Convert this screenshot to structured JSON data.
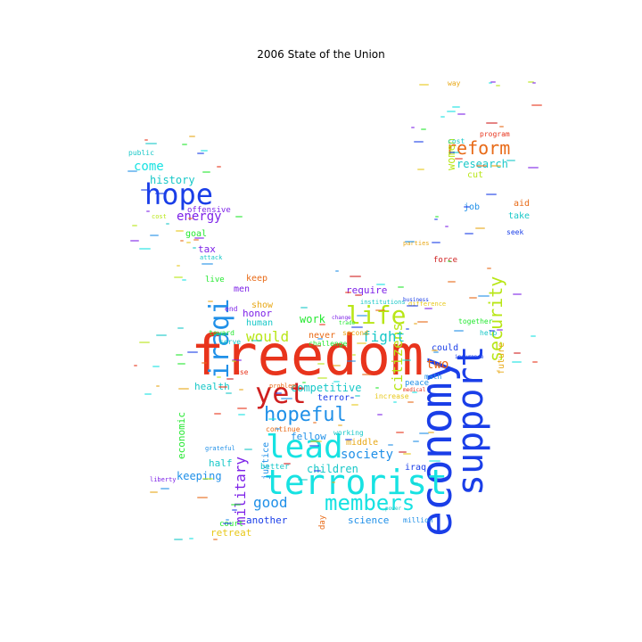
{
  "title": "2006 State of the Union",
  "palette": [
    "#e8341c",
    "#1a3ee8",
    "#17e2e2",
    "#b8e616",
    "#e8a817",
    "#24e830",
    "#cf1f1f",
    "#7d22e8",
    "#2090e8",
    "#e86a17",
    "#e8c81a",
    "#18c8c8"
  ],
  "words": [
    {
      "text": "freedom",
      "color": "#e8341c",
      "vertical": false
    },
    {
      "text": "economy",
      "color": "#1a3ee8",
      "vertical": true
    },
    {
      "text": "support",
      "color": "#1a3ee8",
      "vertical": true
    },
    {
      "text": "terrorist",
      "color": "#17e2e2",
      "vertical": false
    },
    {
      "text": "lead",
      "color": "#17e2e2",
      "vertical": false
    },
    {
      "text": "hope",
      "color": "#1a3ee8",
      "vertical": false
    },
    {
      "text": "yet",
      "color": "#cf1f1f",
      "vertical": false
    },
    {
      "text": "iraqi",
      "color": "#2090e8",
      "vertical": true
    },
    {
      "text": "life",
      "color": "#b8e616",
      "vertical": false
    },
    {
      "text": "members",
      "color": "#17e2e2",
      "vertical": false
    },
    {
      "text": "hopeful",
      "color": "#2090e8",
      "vertical": false
    },
    {
      "text": "reform",
      "color": "#e86a17",
      "vertical": false
    },
    {
      "text": "security",
      "color": "#b8e616",
      "vertical": true
    },
    {
      "text": "citizens",
      "color": "#b8e616",
      "vertical": true
    },
    {
      "text": "would",
      "color": "#b8e616",
      "vertical": false
    },
    {
      "text": "fight",
      "color": "#18c8c8",
      "vertical": false
    },
    {
      "text": "military",
      "color": "#7d22e8",
      "vertical": true
    },
    {
      "text": "energy",
      "color": "#7d22e8",
      "vertical": false
    },
    {
      "text": "good",
      "color": "#2090e8",
      "vertical": false
    },
    {
      "text": "society",
      "color": "#2090e8",
      "vertical": false
    },
    {
      "text": "competitive",
      "color": "#18c8c8",
      "vertical": false
    },
    {
      "text": "come",
      "color": "#17e2e2",
      "vertical": false
    },
    {
      "text": "history",
      "color": "#18c8c8",
      "vertical": false
    },
    {
      "text": "two",
      "color": "#e86a17",
      "vertical": false
    },
    {
      "text": "research",
      "color": "#18c8c8",
      "vertical": false
    },
    {
      "text": "children",
      "color": "#18c8c8",
      "vertical": false
    },
    {
      "text": "fellow",
      "color": "#2090e8",
      "vertical": false
    },
    {
      "text": "keeping",
      "color": "#2090e8",
      "vertical": false
    },
    {
      "text": "work",
      "color": "#24e830",
      "vertical": false
    },
    {
      "text": "never",
      "color": "#e86a17",
      "vertical": false
    },
    {
      "text": "could",
      "color": "#1a3ee8",
      "vertical": false
    },
    {
      "text": "women",
      "color": "#b8e616",
      "vertical": true
    },
    {
      "text": "economic",
      "color": "#24e830",
      "vertical": true
    },
    {
      "text": "health",
      "color": "#18c8c8",
      "vertical": false
    },
    {
      "text": "honor",
      "color": "#7d22e8",
      "vertical": false
    },
    {
      "text": "require",
      "color": "#7d22e8",
      "vertical": false
    },
    {
      "text": "science",
      "color": "#2090e8",
      "vertical": false
    },
    {
      "text": "another",
      "color": "#1a3ee8",
      "vertical": false
    },
    {
      "text": "retreat",
      "color": "#e8c81a",
      "vertical": false
    },
    {
      "text": "terror",
      "color": "#1a3ee8",
      "vertical": false
    },
    {
      "text": "middle",
      "color": "#e8a817",
      "vertical": false
    },
    {
      "text": "half",
      "color": "#18c8c8",
      "vertical": false
    },
    {
      "text": "justice",
      "color": "#2090e8",
      "vertical": true
    },
    {
      "text": "tax",
      "color": "#7d22e8",
      "vertical": false
    },
    {
      "text": "goal",
      "color": "#24e830",
      "vertical": false
    },
    {
      "text": "keep",
      "color": "#e86a17",
      "vertical": false
    },
    {
      "text": "men",
      "color": "#7d22e8",
      "vertical": false
    },
    {
      "text": "human",
      "color": "#18c8c8",
      "vertical": false
    },
    {
      "text": "show",
      "color": "#e8a817",
      "vertical": false
    },
    {
      "text": "job",
      "color": "#2090e8",
      "vertical": false
    },
    {
      "text": "cut",
      "color": "#b8e616",
      "vertical": false
    },
    {
      "text": "aid",
      "color": "#e86a17",
      "vertical": false
    },
    {
      "text": "take",
      "color": "#18c8c8",
      "vertical": false
    },
    {
      "text": "future",
      "color": "#e8a817",
      "vertical": true
    },
    {
      "text": "force",
      "color": "#cf1f1f",
      "vertical": false
    },
    {
      "text": "offensive",
      "color": "#7d22e8",
      "vertical": false
    },
    {
      "text": "live",
      "color": "#24e830",
      "vertical": false
    },
    {
      "text": "public",
      "color": "#18c8c8",
      "vertical": false
    },
    {
      "text": "peace",
      "color": "#2090e8",
      "vertical": false
    },
    {
      "text": "iraq",
      "color": "#1a3ee8",
      "vertical": false
    },
    {
      "text": "better",
      "color": "#18c8c8",
      "vertical": false
    },
    {
      "text": "court",
      "color": "#24e830",
      "vertical": false
    },
    {
      "text": "day",
      "color": "#e86a17",
      "vertical": true
    },
    {
      "text": "end",
      "color": "#7d22e8",
      "vertical": false
    },
    {
      "text": "toward",
      "color": "#24e830",
      "vertical": false
    },
    {
      "text": "serve",
      "color": "#18c8c8",
      "vertical": false
    },
    {
      "text": "use",
      "color": "#e8341c",
      "vertical": false
    },
    {
      "text": "working",
      "color": "#18c8c8",
      "vertical": false
    },
    {
      "text": "challenge",
      "color": "#24e830",
      "vertical": false
    },
    {
      "text": "increase",
      "color": "#e8c81a",
      "vertical": false
    },
    {
      "text": "million",
      "color": "#2090e8",
      "vertical": false
    },
    {
      "text": "way",
      "color": "#e8a817",
      "vertical": false
    },
    {
      "text": "program",
      "color": "#e8341c",
      "vertical": false
    },
    {
      "text": "cost",
      "color": "#18c8c8",
      "vertical": false
    },
    {
      "text": "seek",
      "color": "#1a3ee8",
      "vertical": false
    },
    {
      "text": "help",
      "color": "#18c8c8",
      "vertical": false
    },
    {
      "text": "math",
      "color": "#2090e8",
      "vertical": false
    },
    {
      "text": "together",
      "color": "#24e830",
      "vertical": false
    },
    {
      "text": "second",
      "color": "#e8a817",
      "vertical": false
    },
    {
      "text": "continue",
      "color": "#e86a17",
      "vertical": false
    },
    {
      "text": "grateful",
      "color": "#2090e8",
      "vertical": false
    },
    {
      "text": "cost",
      "color": "#b8e616",
      "vertical": false
    },
    {
      "text": "attack",
      "color": "#18c8c8",
      "vertical": false
    },
    {
      "text": "liberty",
      "color": "#7d22e8",
      "vertical": false
    },
    {
      "text": "insurance",
      "color": "#1a3ee8",
      "vertical": false
    },
    {
      "text": "problem",
      "color": "#e86a17",
      "vertical": false
    },
    {
      "text": "difference",
      "color": "#e8c81a",
      "vertical": false
    },
    {
      "text": "institutions",
      "color": "#18c8c8",
      "vertical": false
    },
    {
      "text": "parties",
      "color": "#e8a817",
      "vertical": false
    },
    {
      "text": "change",
      "color": "#7d22e8",
      "vertical": false
    },
    {
      "text": "business",
      "color": "#1a3ee8",
      "vertical": false
    },
    {
      "text": "power",
      "color": "#18c8c8",
      "vertical": false
    },
    {
      "text": "trade",
      "color": "#24e830",
      "vertical": false
    },
    {
      "text": "medical",
      "color": "#e8341c",
      "vertical": false
    },
    {
      "text": "families",
      "color": "#1a3ee8",
      "vertical": false
    }
  ]
}
